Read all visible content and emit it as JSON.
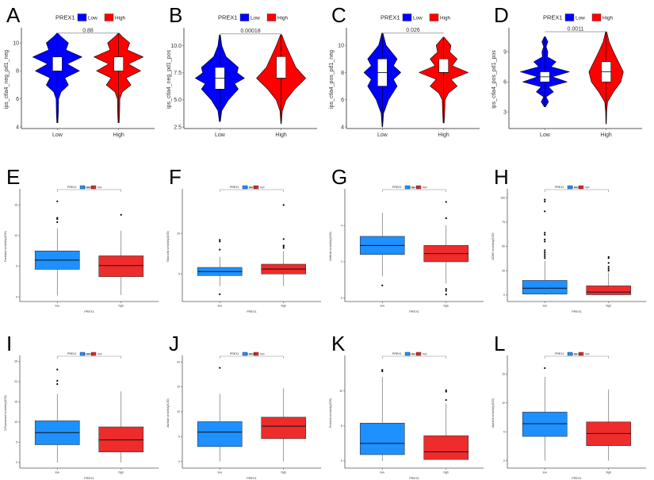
{
  "figure": {
    "legend_title": "PREX1",
    "colors": {
      "violin_low": "#0000ff",
      "violin_high": "#ff0000",
      "box_low": "#1e90ff",
      "box_high": "#ee2c2c"
    }
  },
  "chart_data": [
    {
      "panel": "A",
      "type": "violin",
      "ylabel": "ips_ctla4_neg_pd1_neg",
      "xlabel": "",
      "categories": [
        "Low",
        "High"
      ],
      "legend": [
        "Low",
        "High"
      ],
      "ylim": [
        4,
        10.8
      ],
      "yticks": [
        4,
        6,
        8,
        10
      ],
      "pvalue": "0.88",
      "groups": [
        {
          "name": "Low",
          "min": 4.3,
          "q1": 8.0,
          "median": 8.5,
          "q3": 9.0,
          "max": 10.7,
          "density": [
            [
              4.3,
              0.02
            ],
            [
              5,
              0.04
            ],
            [
              6,
              0.05
            ],
            [
              6.5,
              0.15
            ],
            [
              7,
              0.45
            ],
            [
              7.5,
              0.3
            ],
            [
              8,
              0.9
            ],
            [
              8.5,
              0.4
            ],
            [
              9,
              1.0
            ],
            [
              9.5,
              0.35
            ],
            [
              10,
              0.45
            ],
            [
              10.5,
              0.12
            ],
            [
              10.7,
              0.02
            ]
          ]
        },
        {
          "name": "High",
          "min": 4.3,
          "q1": 8.0,
          "median": 8.5,
          "q3": 9.0,
          "max": 10.7,
          "density": [
            [
              4.3,
              0.02
            ],
            [
              5,
              0.04
            ],
            [
              6,
              0.05
            ],
            [
              6.5,
              0.15
            ],
            [
              7,
              0.5
            ],
            [
              7.5,
              0.3
            ],
            [
              8,
              0.9
            ],
            [
              8.5,
              0.4
            ],
            [
              9,
              1.0
            ],
            [
              9.5,
              0.35
            ],
            [
              10,
              0.45
            ],
            [
              10.5,
              0.12
            ],
            [
              10.7,
              0.02
            ]
          ]
        }
      ]
    },
    {
      "panel": "B",
      "type": "violin",
      "ylabel": "ips_ctla4_neg_pd1_pos",
      "xlabel": "",
      "categories": [
        "Low",
        "High"
      ],
      "legend": [
        "Low",
        "High"
      ],
      "ylim": [
        2.5,
        11.3
      ],
      "yticks": [
        2.5,
        5.0,
        7.5,
        10.0
      ],
      "pvalue": "0.00018",
      "groups": [
        {
          "name": "Low",
          "min": 3.0,
          "q1": 6.0,
          "median": 7.0,
          "q3": 8.0,
          "max": 11.0,
          "density": [
            [
              3,
              0.02
            ],
            [
              4,
              0.08
            ],
            [
              5,
              0.35
            ],
            [
              6,
              0.75
            ],
            [
              6.5,
              0.6
            ],
            [
              7,
              1.0
            ],
            [
              7.5,
              0.7
            ],
            [
              8,
              0.75
            ],
            [
              9,
              0.25
            ],
            [
              10,
              0.08
            ],
            [
              11,
              0.02
            ]
          ]
        },
        {
          "name": "High",
          "min": 2.8,
          "q1": 7.0,
          "median": 7.0,
          "q3": 9.0,
          "max": 11.1,
          "density": [
            [
              2.8,
              0.01
            ],
            [
              4,
              0.05
            ],
            [
              5,
              0.2
            ],
            [
              6,
              0.55
            ],
            [
              7,
              1.0
            ],
            [
              8,
              0.6
            ],
            [
              9,
              0.4
            ],
            [
              10,
              0.2
            ],
            [
              11,
              0.03
            ]
          ]
        }
      ]
    },
    {
      "panel": "C",
      "type": "violin",
      "ylabel": "ips_ctla4_pos_pd1_neg",
      "xlabel": "",
      "categories": [
        "Low",
        "High"
      ],
      "legend": [
        "Low",
        "High"
      ],
      "ylim": [
        4,
        11
      ],
      "yticks": [
        4,
        6,
        8,
        10
      ],
      "pvalue": "0.026",
      "groups": [
        {
          "name": "Low",
          "min": 4.0,
          "q1": 7.0,
          "median": 8.0,
          "q3": 9.0,
          "max": 10.9,
          "density": [
            [
              4,
              0.01
            ],
            [
              5,
              0.05
            ],
            [
              6,
              0.25
            ],
            [
              7,
              0.6
            ],
            [
              7.5,
              0.45
            ],
            [
              8,
              0.75
            ],
            [
              8.5,
              0.45
            ],
            [
              9,
              0.6
            ],
            [
              10,
              0.15
            ],
            [
              10.9,
              0.02
            ]
          ]
        },
        {
          "name": "High",
          "min": 4.3,
          "q1": 8.0,
          "median": 8.0,
          "q3": 9.0,
          "max": 10.6,
          "density": [
            [
              4.3,
              0.02
            ],
            [
              5,
              0.04
            ],
            [
              6,
              0.06
            ],
            [
              6.5,
              0.2
            ],
            [
              7,
              0.55
            ],
            [
              7.5,
              0.3
            ],
            [
              8,
              1.0
            ],
            [
              8.5,
              0.35
            ],
            [
              9,
              0.55
            ],
            [
              9.5,
              0.25
            ],
            [
              10,
              0.3
            ],
            [
              10.6,
              0.02
            ]
          ]
        }
      ]
    },
    {
      "panel": "D",
      "type": "violin",
      "ylabel": "ips_ctla4_pos_pd1_pos",
      "xlabel": "",
      "categories": [
        "Low",
        "High"
      ],
      "legend": [
        "Low",
        "High"
      ],
      "ylim": [
        1.5,
        11
      ],
      "yticks": [
        3,
        6,
        9
      ],
      "pvalue": "0.0011",
      "groups": [
        {
          "name": "Low",
          "min": 3.5,
          "q1": 6.0,
          "median": 6.5,
          "q3": 7.0,
          "max": 10.5,
          "density": [
            [
              3.5,
              0.02
            ],
            [
              4,
              0.15
            ],
            [
              4.5,
              0.05
            ],
            [
              5,
              0.35
            ],
            [
              5.5,
              0.15
            ],
            [
              6,
              0.9
            ],
            [
              6.5,
              0.3
            ],
            [
              7,
              1.0
            ],
            [
              7.5,
              0.25
            ],
            [
              8,
              0.45
            ],
            [
              8.5,
              0.1
            ],
            [
              9,
              0.12
            ],
            [
              9.5,
              0.05
            ],
            [
              10,
              0.12
            ],
            [
              10.5,
              0.02
            ]
          ]
        },
        {
          "name": "High",
          "min": 1.8,
          "q1": 6.0,
          "median": 7.0,
          "q3": 8.0,
          "max": 11.0,
          "density": [
            [
              1.8,
              0.01
            ],
            [
              3,
              0.02
            ],
            [
              4,
              0.06
            ],
            [
              5,
              0.3
            ],
            [
              6,
              0.6
            ],
            [
              7,
              0.7
            ],
            [
              8,
              0.5
            ],
            [
              9,
              0.3
            ],
            [
              10,
              0.12
            ],
            [
              11,
              0.02
            ]
          ]
        }
      ]
    },
    {
      "panel": "E",
      "type": "box",
      "ylabel": "Paclitaxel sensitivity(IC50)",
      "xlabel": "PREX1",
      "categories": [
        "low",
        "high"
      ],
      "legend": [
        "low",
        "high"
      ],
      "ylim": [
        -0.5,
        17
      ],
      "yticks": [
        0,
        5,
        10,
        15
      ],
      "pvalue": "0.00081",
      "groups": [
        {
          "name": "low",
          "min": 0.2,
          "q1": 4.5,
          "median": 6.0,
          "q3": 7.5,
          "max": 11.2,
          "outliers": [
            12.2,
            12.7,
            12.9,
            15.6
          ]
        },
        {
          "name": "high",
          "min": 0.3,
          "q1": 3.3,
          "median": 5.1,
          "q3": 6.7,
          "max": 10.8,
          "outliers": [
            13.4
          ]
        }
      ]
    },
    {
      "panel": "F",
      "type": "box",
      "ylabel": "Ribociclib sensitivity(IC50)",
      "xlabel": "PREX1",
      "categories": [
        "low",
        "high"
      ],
      "legend": [
        "low",
        "high"
      ],
      "ylim": [
        1.8,
        15
      ],
      "yticks": [
        5,
        10
      ],
      "pvalue": "0.00082",
      "groups": [
        {
          "name": "low",
          "min": 3.5,
          "q1": 4.8,
          "median": 5.3,
          "q3": 5.8,
          "max": 7.1,
          "outliers": [
            2.5,
            8.0,
            9.0,
            9.2
          ]
        },
        {
          "name": "high",
          "min": 3.5,
          "q1": 5.0,
          "median": 5.6,
          "q3": 6.2,
          "max": 7.8,
          "outliers": [
            8.2,
            8.4,
            8.5,
            9.3,
            13.5
          ]
        }
      ]
    },
    {
      "panel": "G",
      "type": "box",
      "ylabel": "Gefitinib sensitivity(IC50)",
      "xlabel": "PREX1",
      "categories": [
        "low",
        "high"
      ],
      "legend": [
        "low",
        "high"
      ],
      "ylim": [
        -0.1,
        5.8
      ],
      "yticks": [
        0,
        2,
        4
      ],
      "pvalue": "2.3e-09",
      "groups": [
        {
          "name": "low",
          "min": 1.2,
          "q1": 2.4,
          "median": 2.9,
          "q3": 3.4,
          "max": 4.7,
          "outliers": [
            0.7
          ]
        },
        {
          "name": "high",
          "min": 0.8,
          "q1": 2.0,
          "median": 2.45,
          "q3": 2.9,
          "max": 4.0,
          "outliers": [
            0.2,
            0.4,
            0.5,
            4.4,
            5.3
          ]
        }
      ]
    },
    {
      "panel": "H",
      "type": "box",
      "ylabel": "AZ960 sensitivity(IC50)",
      "xlabel": "PREX1",
      "categories": [
        "low",
        "high"
      ],
      "legend": [
        "low",
        "high"
      ],
      "ylim": [
        -5,
        105
      ],
      "yticks": [
        0,
        25,
        50,
        75,
        100
      ],
      "pvalue": "0.00099",
      "groups": [
        {
          "name": "low",
          "min": 0.2,
          "q1": 1.0,
          "median": 7.0,
          "q3": 15.0,
          "max": 35.0,
          "outliers": [
            38,
            40,
            42,
            44,
            46,
            55,
            57,
            62,
            64,
            86,
            96,
            98
          ]
        },
        {
          "name": "high",
          "min": 0.1,
          "q1": 0.3,
          "median": 3.0,
          "q3": 9.5,
          "max": 23.0,
          "outliers": [
            25,
            27,
            29,
            33,
            38,
            39
          ]
        }
      ]
    },
    {
      "panel": "I",
      "type": "box",
      "ylabel": "5-Fluorouracil sensitivity(IC50)",
      "xlabel": "PREX1",
      "categories": [
        "low",
        "high"
      ],
      "legend": [
        "low",
        "high"
      ],
      "ylim": [
        -1,
        25.5
      ],
      "yticks": [
        0,
        5,
        10,
        15,
        20,
        25
      ],
      "pvalue": "0.00031",
      "groups": [
        {
          "name": "low",
          "min": 0.0,
          "q1": 4.4,
          "median": 7.4,
          "q3": 10.3,
          "max": 17.0,
          "outliers": [
            19.4,
            20.2,
            23.0
          ]
        },
        {
          "name": "high",
          "min": 0.0,
          "q1": 2.6,
          "median": 5.6,
          "q3": 8.8,
          "max": 17.6,
          "outliers": []
        }
      ]
    },
    {
      "panel": "J",
      "type": "box",
      "ylabel": "Avelabe sensitivity(IC50)",
      "xlabel": "PREX1",
      "categories": [
        "low",
        "high"
      ],
      "legend": [
        "low",
        "high"
      ],
      "ylim": [
        -1,
        20.5
      ],
      "yticks": [
        0,
        5,
        10,
        15,
        20
      ],
      "pvalue": "0.00046",
      "groups": [
        {
          "name": "low",
          "min": 0.0,
          "q1": 3.0,
          "median": 5.9,
          "q3": 8.0,
          "max": 13.6,
          "outliers": [
            18.8
          ]
        },
        {
          "name": "high",
          "min": 0.0,
          "q1": 4.6,
          "median": 7.1,
          "q3": 8.9,
          "max": 14.7,
          "outliers": []
        }
      ]
    },
    {
      "panel": "K",
      "type": "box",
      "ylabel": "Foretinib sensitivity(IC50)",
      "xlabel": "PREX1",
      "categories": [
        "low",
        "high"
      ],
      "legend": [
        "low",
        "high"
      ],
      "ylim": [
        -0.8,
        14.5
      ],
      "yticks": [
        0,
        5,
        10
      ],
      "pvalue": "1.4e-05",
      "groups": [
        {
          "name": "low",
          "min": 0.0,
          "q1": 0.9,
          "median": 2.5,
          "q3": 5.4,
          "max": 12.0,
          "outliers": [
            12.8,
            13.0
          ]
        },
        {
          "name": "high",
          "min": 0.2,
          "q1": 0.2,
          "median": 1.3,
          "q3": 3.6,
          "max": 8.2,
          "outliers": [
            8.7,
            9.9,
            10.1
          ]
        }
      ]
    },
    {
      "panel": "L",
      "type": "box",
      "ylabel": "Alpelisib sensitivity(IC50)",
      "xlabel": "PREX1",
      "categories": [
        "low",
        "high"
      ],
      "legend": [
        "low",
        "high"
      ],
      "ylim": [
        -1,
        17.5
      ],
      "yticks": [
        0,
        5,
        10,
        15
      ],
      "pvalue": "1.6e-06",
      "groups": [
        {
          "name": "low",
          "min": 0.0,
          "q1": 4.2,
          "median": 6.4,
          "q3": 8.4,
          "max": 14.5,
          "outliers": [
            16.0
          ]
        },
        {
          "name": "high",
          "min": 0.0,
          "q1": 2.6,
          "median": 4.7,
          "q3": 6.7,
          "max": 12.3,
          "outliers": []
        }
      ]
    }
  ]
}
